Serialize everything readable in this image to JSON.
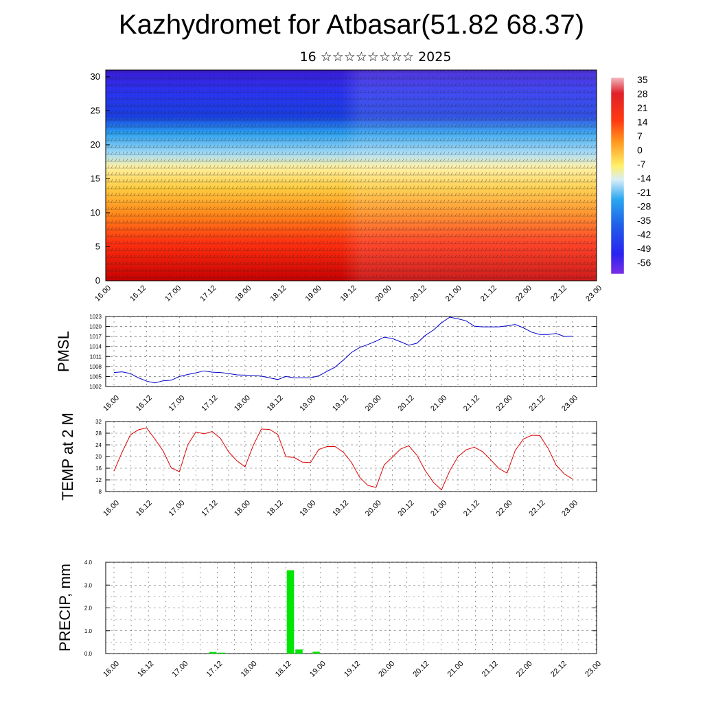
{
  "title": "Kazhydromet for Atbasar(51.82 68.37)",
  "subtitle": "16 ☆☆☆☆☆☆☆☆ 2025",
  "colors": {
    "pmsl_line": "#0000cc",
    "temp_line": "#dd0000",
    "precip_bar": "#00e600",
    "colorbar_top": "#f2b8bf",
    "colorbar_bottom": "#7a2ee6"
  },
  "time_ticks": [
    "16.00",
    "16.12",
    "17.00",
    "17.12",
    "18.00",
    "18.12",
    "19.00",
    "19.12",
    "20.00",
    "20.12",
    "21.00",
    "21.12",
    "22.00",
    "22.12",
    "23.00"
  ],
  "chart_data": [
    {
      "type": "heatmap",
      "name": "cross-section",
      "ylim": [
        0,
        31
      ],
      "y_ticks": [
        "0",
        "5",
        "10",
        "15",
        "20",
        "25",
        "30"
      ],
      "colorbar_labels": [
        "35",
        "28",
        "21",
        "14",
        "7",
        "0",
        "-7",
        "-14",
        "-21",
        "-28",
        "-35",
        "-42",
        "-49",
        "-56"
      ],
      "wind_barbs": true
    },
    {
      "type": "line",
      "ylabel": "PMSL",
      "ylim": [
        1002,
        1023
      ],
      "y_ticks": [
        "1002",
        "1005",
        "1008",
        "1011",
        "1014",
        "1017",
        "1020",
        "1023"
      ],
      "x_hours": [
        0,
        3,
        6,
        9,
        12,
        15,
        18,
        21,
        24,
        27,
        30,
        33,
        36,
        39,
        42,
        45,
        48,
        51,
        54,
        57,
        60,
        63,
        66,
        69,
        72,
        75,
        78,
        81,
        84,
        87,
        90,
        93,
        96,
        99,
        102,
        105,
        108,
        111,
        114,
        117,
        120,
        123,
        126,
        129,
        132,
        135,
        138,
        141,
        144,
        147,
        150,
        153,
        156,
        159,
        162,
        165,
        168
      ],
      "values": [
        1006.2,
        1006.4,
        1005.9,
        1004.6,
        1003.6,
        1003.1,
        1003.7,
        1003.9,
        1005.0,
        1005.6,
        1006.1,
        1006.7,
        1006.3,
        1006.2,
        1005.9,
        1005.5,
        1005.4,
        1005.3,
        1005.1,
        1004.6,
        1004.1,
        1005.0,
        1004.6,
        1004.6,
        1004.6,
        1005.2,
        1006.5,
        1007.8,
        1009.9,
        1012.2,
        1013.7,
        1014.6,
        1015.6,
        1016.8,
        1016.4,
        1015.4,
        1014.4,
        1015.0,
        1017.3,
        1018.9,
        1021.1,
        1022.8,
        1022.3,
        1021.7,
        1020.1,
        1019.9,
        1019.9,
        1019.9,
        1020.2,
        1020.6,
        1019.6,
        1018.3,
        1017.6,
        1017.6,
        1017.9,
        1017.0,
        1017.1
      ]
    },
    {
      "type": "line",
      "ylabel": "TEMP at 2 M",
      "ylim": [
        8,
        32
      ],
      "y_ticks": [
        "8",
        "12",
        "16",
        "20",
        "24",
        "28",
        "32"
      ],
      "x_hours": [
        0,
        3,
        6,
        9,
        12,
        15,
        18,
        21,
        24,
        27,
        30,
        33,
        36,
        39,
        42,
        45,
        48,
        51,
        54,
        57,
        60,
        63,
        66,
        69,
        72,
        75,
        78,
        81,
        84,
        87,
        90,
        93,
        96,
        99,
        102,
        105,
        108,
        111,
        114,
        117,
        120,
        123,
        126,
        129,
        132,
        135,
        138,
        141,
        144,
        147,
        150,
        153,
        156,
        159,
        162,
        165,
        168
      ],
      "values": [
        15.0,
        21.5,
        27.4,
        29.2,
        29.8,
        26.0,
        21.9,
        16.1,
        14.8,
        24.0,
        28.4,
        27.8,
        28.6,
        26.2,
        21.6,
        18.6,
        16.5,
        23.8,
        29.4,
        29.3,
        27.6,
        19.9,
        19.7,
        18.1,
        17.9,
        22.4,
        23.4,
        23.4,
        21.5,
        18.0,
        12.9,
        10.1,
        9.4,
        17.1,
        19.8,
        22.6,
        23.7,
        20.4,
        15.2,
        11.2,
        8.6,
        15.1,
        19.9,
        22.3,
        23.2,
        21.7,
        18.9,
        15.9,
        14.3,
        22.1,
        26.0,
        27.3,
        27.2,
        22.9,
        17.1,
        14.0,
        12.3
      ]
    },
    {
      "type": "bar",
      "ylabel": "PRECIP, mm",
      "ylim": [
        0,
        4
      ],
      "y_ticks": [
        "0.0",
        "1.0",
        "2.0",
        "3.0",
        "4.0"
      ],
      "bars": [
        {
          "start_hour": 33,
          "end_hour": 36,
          "value": 0.07
        },
        {
          "start_hour": 36,
          "end_hour": 39,
          "value": 0.04
        },
        {
          "start_hour": 60,
          "end_hour": 63,
          "value": 3.65
        },
        {
          "start_hour": 63,
          "end_hour": 66,
          "value": 0.18
        },
        {
          "start_hour": 69,
          "end_hour": 72,
          "value": 0.08
        }
      ]
    }
  ]
}
